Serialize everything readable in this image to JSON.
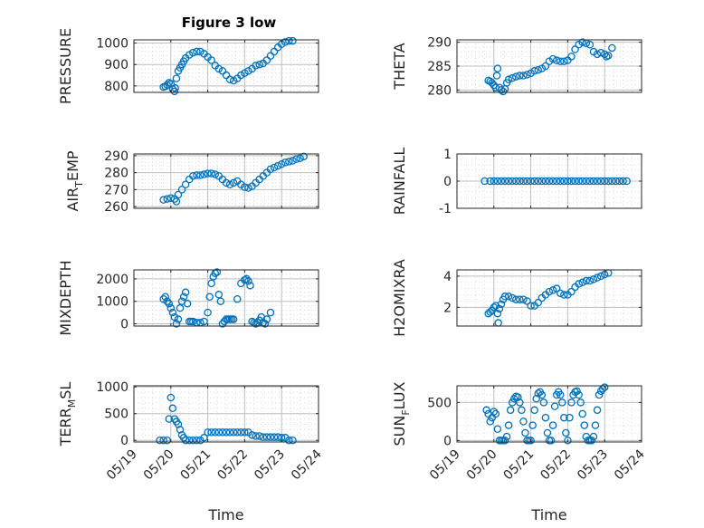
{
  "figure_title": "Figure 3 low",
  "marker_color": "#0072BD",
  "chart_data": [
    {
      "type": "scatter",
      "title": "Figure 3 low",
      "ylabel": "PRESSURE",
      "xlabel": "",
      "xlim": [
        0,
        5
      ],
      "ylim": [
        770,
        1015
      ],
      "yticks": [
        800,
        900,
        1000
      ],
      "ytick_labels": [
        "800",
        "900",
        "1000"
      ],
      "x": [
        0.8,
        0.85,
        0.9,
        0.95,
        1.0,
        1.05,
        1.1,
        1.12,
        1.15,
        1.2,
        1.25,
        1.3,
        1.35,
        1.4,
        1.5,
        1.6,
        1.7,
        1.8,
        1.9,
        2.0,
        2.1,
        2.2,
        2.3,
        2.4,
        2.5,
        2.6,
        2.7,
        2.8,
        2.9,
        3.0,
        3.1,
        3.2,
        3.3,
        3.4,
        3.5,
        3.6,
        3.7,
        3.8,
        3.9,
        4.0,
        4.1,
        4.2,
        4.3,
        4.4,
        4.5,
        4.6,
        4.7,
        4.8
      ],
      "y": [
        795,
        798,
        805,
        815,
        810,
        785,
        775,
        790,
        835,
        870,
        885,
        900,
        915,
        930,
        945,
        955,
        960,
        960,
        950,
        935,
        920,
        895,
        880,
        870,
        850,
        830,
        825,
        835,
        850,
        860,
        870,
        880,
        895,
        900,
        905,
        920,
        940,
        960,
        980,
        995,
        1005,
        1010,
        1010,
        null,
        null,
        null,
        null,
        null
      ]
    },
    {
      "type": "scatter",
      "ylabel": "THETA",
      "xlim": [
        0,
        5
      ],
      "ylim": [
        279.5,
        290.5
      ],
      "yticks": [
        280,
        285,
        290
      ],
      "ytick_labels": [
        "280",
        "285",
        "290"
      ],
      "x": [
        0.85,
        0.9,
        0.95,
        1.0,
        1.05,
        1.08,
        1.1,
        1.15,
        1.2,
        1.25,
        1.3,
        1.35,
        1.4,
        1.5,
        1.6,
        1.7,
        1.8,
        1.9,
        2.0,
        2.1,
        2.2,
        2.3,
        2.4,
        2.5,
        2.6,
        2.7,
        2.8,
        2.9,
        3.0,
        3.1,
        3.2,
        3.3,
        3.4,
        3.5,
        3.6,
        3.7,
        3.8,
        3.9,
        4.0,
        4.05,
        4.1,
        4.2,
        4.3,
        4.4,
        4.45,
        4.5
      ],
      "y": [
        282,
        281.8,
        281.5,
        281,
        280.5,
        283,
        284.5,
        280.5,
        280,
        279.7,
        280.2,
        281.5,
        282.2,
        282.5,
        282.8,
        283,
        283,
        283.2,
        283.5,
        284,
        284.2,
        284.5,
        285,
        286,
        286.5,
        286.2,
        286,
        286,
        286.2,
        287,
        288.5,
        289.5,
        290,
        289.8,
        289.5,
        288,
        287.5,
        287.8,
        287.5,
        287,
        287.2,
        288.8,
        null,
        null,
        null,
        null
      ]
    },
    {
      "type": "scatter",
      "ylabel": "AIR_TEMP",
      "xlim": [
        0,
        5
      ],
      "ylim": [
        259,
        291
      ],
      "yticks": [
        260,
        270,
        280,
        290
      ],
      "ytick_labels": [
        "260",
        "270",
        "280",
        "290"
      ],
      "x": [
        0.8,
        0.9,
        1.0,
        1.1,
        1.15,
        1.2,
        1.3,
        1.4,
        1.5,
        1.6,
        1.7,
        1.8,
        1.9,
        2.0,
        2.1,
        2.2,
        2.3,
        2.4,
        2.5,
        2.6,
        2.7,
        2.8,
        2.9,
        3.0,
        3.1,
        3.2,
        3.3,
        3.4,
        3.5,
        3.6,
        3.7,
        3.8,
        3.9,
        4.0,
        4.1,
        4.2,
        4.3,
        4.4,
        4.5,
        4.6,
        4.7,
        4.75
      ],
      "y": [
        264,
        264.5,
        265,
        264.5,
        263,
        267,
        270,
        273,
        276,
        278,
        278.5,
        278.5,
        279,
        279.5,
        279.5,
        279,
        278,
        276,
        274,
        273,
        274,
        275,
        273,
        271.5,
        271,
        272,
        274,
        276,
        278,
        280,
        282,
        283,
        284,
        285,
        286,
        286.5,
        287,
        288,
        288.5,
        289.5,
        null,
        null
      ]
    },
    {
      "type": "scatter",
      "ylabel": "RAINFALL",
      "xlim": [
        0,
        5
      ],
      "ylim": [
        -1,
        1
      ],
      "yticks": [
        -1,
        0,
        1
      ],
      "ytick_labels": [
        "-1",
        "0",
        "1"
      ],
      "x": [
        0.75,
        0.9,
        1.0,
        1.1,
        1.2,
        1.3,
        1.4,
        1.5,
        1.6,
        1.7,
        1.8,
        1.9,
        2.0,
        2.1,
        2.2,
        2.3,
        2.4,
        2.5,
        2.6,
        2.7,
        2.8,
        2.9,
        3.0,
        3.1,
        3.2,
        3.3,
        3.4,
        3.5,
        3.6,
        3.7,
        3.8,
        3.9,
        4.0,
        4.1,
        4.2,
        4.3,
        4.4,
        4.5,
        4.6
      ],
      "y": [
        0,
        0,
        0,
        0,
        0,
        0,
        0,
        0,
        0,
        0,
        0,
        0,
        0,
        0,
        0,
        0,
        0,
        0,
        0,
        0,
        0,
        0,
        0,
        0,
        0,
        0,
        0,
        0,
        0,
        0,
        0,
        0,
        0,
        0,
        0,
        0,
        0,
        0,
        0
      ]
    },
    {
      "type": "scatter",
      "ylabel": "MIXDEPTH",
      "xlim": [
        0,
        5
      ],
      "ylim": [
        -100,
        2400
      ],
      "yticks": [
        0,
        1000,
        2000
      ],
      "ytick_labels": [
        "0",
        "1000",
        "2000"
      ],
      "x": [
        0.8,
        0.85,
        0.9,
        0.95,
        1.0,
        1.05,
        1.1,
        1.15,
        1.2,
        1.25,
        1.3,
        1.35,
        1.4,
        1.45,
        1.5,
        1.55,
        1.6,
        1.7,
        1.8,
        1.9,
        2.0,
        2.05,
        2.1,
        2.15,
        2.2,
        2.25,
        2.3,
        2.35,
        2.4,
        2.45,
        2.5,
        2.55,
        2.6,
        2.65,
        2.7,
        2.8,
        2.9,
        3.0,
        3.05,
        3.1,
        3.15,
        3.2,
        3.25,
        3.3,
        3.35,
        3.4,
        3.45,
        3.5,
        3.55,
        3.6,
        3.7,
        3.8,
        3.85,
        3.9,
        3.95,
        4.0,
        4.05,
        4.1,
        4.2
      ],
      "y": [
        1100,
        1200,
        1000,
        900,
        700,
        500,
        300,
        0,
        200,
        700,
        1000,
        1200,
        1400,
        900,
        100,
        100,
        100,
        50,
        50,
        100,
        500,
        1200,
        1800,
        2100,
        2250,
        2300,
        1300,
        1000,
        0,
        100,
        200,
        200,
        200,
        200,
        200,
        1100,
        1800,
        1950,
        2000,
        1900,
        1700,
        100,
        50,
        0,
        50,
        150,
        300,
        50,
        0,
        200,
        500,
        null,
        null,
        null,
        null,
        null,
        null,
        null,
        null
      ]
    },
    {
      "type": "scatter",
      "ylabel": "H2OMIXRA",
      "xlim": [
        0,
        5
      ],
      "ylim": [
        0.8,
        4.4
      ],
      "yticks": [
        2,
        4
      ],
      "ytick_labels": [
        "2",
        "4"
      ],
      "x": [
        0.85,
        0.9,
        0.95,
        1.0,
        1.05,
        1.1,
        1.12,
        1.15,
        1.2,
        1.25,
        1.3,
        1.4,
        1.5,
        1.6,
        1.7,
        1.8,
        1.9,
        2.0,
        2.1,
        2.2,
        2.3,
        2.4,
        2.5,
        2.6,
        2.7,
        2.8,
        2.9,
        3.0,
        3.1,
        3.2,
        3.3,
        3.4,
        3.5,
        3.6,
        3.7,
        3.8,
        3.9,
        4.0,
        4.1,
        4.2,
        4.3,
        4.4,
        4.5
      ],
      "y": [
        1.6,
        1.7,
        1.8,
        2.0,
        2.1,
        1.6,
        1.0,
        1.9,
        2.2,
        2.5,
        2.7,
        2.7,
        2.6,
        2.5,
        2.5,
        2.5,
        2.4,
        2.1,
        2.1,
        2.3,
        2.6,
        2.8,
        3.0,
        3.1,
        3.2,
        2.9,
        2.8,
        2.8,
        3.0,
        3.3,
        3.5,
        3.6,
        3.7,
        3.7,
        3.8,
        3.9,
        4.0,
        4.1,
        4.2,
        null,
        null,
        null,
        null
      ]
    },
    {
      "type": "scatter",
      "ylabel": "TERR_MSL",
      "xlim": [
        0,
        5
      ],
      "ylim": [
        -30,
        1020
      ],
      "yticks": [
        0,
        500,
        1000
      ],
      "ytick_labels": [
        "0",
        "500",
        "1000"
      ],
      "x": [
        0.7,
        0.8,
        0.9,
        0.95,
        1.0,
        1.05,
        1.1,
        1.15,
        1.2,
        1.25,
        1.3,
        1.35,
        1.4,
        1.5,
        1.6,
        1.7,
        1.8,
        1.9,
        2.0,
        2.1,
        2.2,
        2.3,
        2.4,
        2.5,
        2.6,
        2.7,
        2.8,
        2.9,
        3.0,
        3.1,
        3.2,
        3.3,
        3.4,
        3.5,
        3.6,
        3.7,
        3.8,
        3.9,
        4.0,
        4.1,
        4.2,
        4.3
      ],
      "y": [
        0,
        0,
        0,
        400,
        800,
        600,
        400,
        350,
        300,
        200,
        100,
        50,
        0,
        0,
        0,
        0,
        0,
        50,
        150,
        150,
        150,
        150,
        150,
        150,
        150,
        150,
        150,
        150,
        150,
        150,
        100,
        80,
        80,
        60,
        60,
        60,
        60,
        60,
        50,
        50,
        0,
        0
      ]
    },
    {
      "type": "scatter",
      "ylabel": "SUN_FLUX",
      "xlim": [
        0,
        5
      ],
      "ylim": [
        -20,
        720
      ],
      "yticks": [
        0,
        500
      ],
      "ytick_labels": [
        "0",
        "500"
      ],
      "x": [
        0.8,
        0.85,
        0.9,
        0.95,
        1.0,
        1.05,
        1.1,
        1.15,
        1.2,
        1.25,
        1.3,
        1.35,
        1.4,
        1.45,
        1.5,
        1.55,
        1.6,
        1.65,
        1.7,
        1.75,
        1.8,
        1.85,
        1.9,
        1.95,
        2.0,
        2.05,
        2.1,
        2.15,
        2.2,
        2.25,
        2.3,
        2.35,
        2.4,
        2.45,
        2.5,
        2.55,
        2.6,
        2.65,
        2.7,
        2.75,
        2.8,
        2.85,
        2.9,
        2.95,
        3.0,
        3.05,
        3.1,
        3.15,
        3.2,
        3.25,
        3.3,
        3.35,
        3.4,
        3.45,
        3.5,
        3.55,
        3.6,
        3.65,
        3.7,
        3.75,
        3.8,
        3.85,
        3.9,
        3.95,
        4.0,
        4.05,
        4.1,
        4.15,
        4.2,
        4.25,
        4.3,
        4.35,
        4.4,
        4.45,
        4.5
      ],
      "y": [
        400,
        350,
        250,
        300,
        380,
        350,
        150,
        0,
        0,
        0,
        0,
        50,
        200,
        400,
        500,
        550,
        580,
        570,
        500,
        400,
        250,
        100,
        0,
        0,
        0,
        200,
        400,
        550,
        620,
        640,
        600,
        500,
        300,
        100,
        0,
        0,
        200,
        450,
        600,
        640,
        600,
        500,
        300,
        100,
        0,
        300,
        500,
        600,
        640,
        650,
        600,
        500,
        350,
        200,
        50,
        0,
        0,
        0,
        50,
        200,
        400,
        600,
        650,
        680,
        700,
        null,
        null,
        null,
        null,
        null,
        null,
        null,
        null,
        null,
        null
      ]
    }
  ],
  "xaxis": {
    "ticks": [
      0,
      1,
      2,
      3,
      4,
      5
    ],
    "tick_labels": [
      "05/19",
      "05/20",
      "05/21",
      "05/22",
      "05/23",
      "05/24"
    ],
    "xlabel": "Time"
  },
  "ylabel_parts": [
    {
      "main": "PRESSURE",
      "sub": "",
      "rest": ""
    },
    {
      "main": "THETA",
      "sub": "",
      "rest": ""
    },
    {
      "main": "AIR",
      "sub": "T",
      "rest": "EMP"
    },
    {
      "main": "RAINFALL",
      "sub": "",
      "rest": ""
    },
    {
      "main": "MIXDEPTH",
      "sub": "",
      "rest": ""
    },
    {
      "main": "H2OMIXRA",
      "sub": "",
      "rest": ""
    },
    {
      "main": "TERR",
      "sub": "M",
      "rest": "SL"
    },
    {
      "main": "SUN",
      "sub": "F",
      "rest": "LUX"
    }
  ]
}
